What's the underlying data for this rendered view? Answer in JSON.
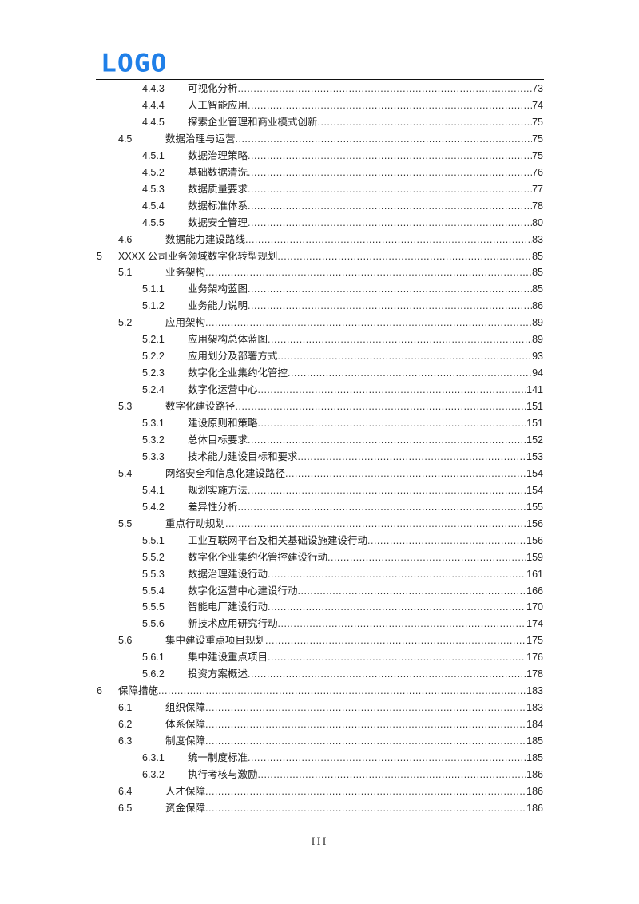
{
  "header": {
    "logo_text": "LOGO",
    "logo_color": "#1f7fe8"
  },
  "toc": [
    {
      "num": "4.4.3",
      "title": "可视化分析",
      "page": "73",
      "level": 3
    },
    {
      "num": "4.4.4",
      "title": "人工智能应用",
      "page": "74",
      "level": 3
    },
    {
      "num": "4.4.5",
      "title": "探索企业管理和商业模式创新",
      "page": "75",
      "level": 3
    },
    {
      "num": "4.5",
      "title": "数据治理与运营",
      "page": "75",
      "level": 2
    },
    {
      "num": "4.5.1",
      "title": "数据治理策略",
      "page": "75",
      "level": 3
    },
    {
      "num": "4.5.2",
      "title": "基础数据清洗",
      "page": "76",
      "level": 3
    },
    {
      "num": "4.5.3",
      "title": "数据质量要求",
      "page": "77",
      "level": 3
    },
    {
      "num": "4.5.4",
      "title": "数据标准体系",
      "page": "78",
      "level": 3
    },
    {
      "num": "4.5.5",
      "title": "数据安全管理",
      "page": "80",
      "level": 3
    },
    {
      "num": "4.6",
      "title": "数据能力建设路线",
      "page": "83",
      "level": 2
    },
    {
      "num": "5",
      "title": "XXXX 公司业务领域数字化转型规划",
      "page": "85",
      "level": 1
    },
    {
      "num": "5.1",
      "title": "业务架构",
      "page": "85",
      "level": 2
    },
    {
      "num": "5.1.1",
      "title": "业务架构蓝图",
      "page": "85",
      "level": 3
    },
    {
      "num": "5.1.2",
      "title": "业务能力说明",
      "page": "86",
      "level": 3
    },
    {
      "num": "5.2",
      "title": "应用架构",
      "page": "89",
      "level": 2
    },
    {
      "num": "5.2.1",
      "title": "应用架构总体蓝图",
      "page": "89",
      "level": 3
    },
    {
      "num": "5.2.2",
      "title": "应用划分及部署方式",
      "page": "93",
      "level": 3
    },
    {
      "num": "5.2.3",
      "title": "数字化企业集约化管控",
      "page": "94",
      "level": 3
    },
    {
      "num": "5.2.4",
      "title": "数字化运营中心",
      "page": "141",
      "level": 3
    },
    {
      "num": "5.3",
      "title": "数字化建设路径",
      "page": "151",
      "level": 2
    },
    {
      "num": "5.3.1",
      "title": "建设原则和策略",
      "page": "151",
      "level": 3
    },
    {
      "num": "5.3.2",
      "title": "总体目标要求",
      "page": "152",
      "level": 3
    },
    {
      "num": "5.3.3",
      "title": "技术能力建设目标和要求",
      "page": "153",
      "level": 3
    },
    {
      "num": "5.4",
      "title": "网络安全和信息化建设路径",
      "page": "154",
      "level": 2
    },
    {
      "num": "5.4.1",
      "title": "规划实施方法",
      "page": "154",
      "level": 3
    },
    {
      "num": "5.4.2",
      "title": "差异性分析",
      "page": "155",
      "level": 3
    },
    {
      "num": "5.5",
      "title": "重点行动规划",
      "page": "156",
      "level": 2
    },
    {
      "num": "5.5.1",
      "title": "工业互联网平台及相关基础设施建设行动",
      "page": "156",
      "level": 3
    },
    {
      "num": "5.5.2",
      "title": "数字化企业集约化管控建设行动",
      "page": "159",
      "level": 3
    },
    {
      "num": "5.5.3",
      "title": "数据治理建设行动",
      "page": "161",
      "level": 3
    },
    {
      "num": "5.5.4",
      "title": "数字化运营中心建设行动",
      "page": "166",
      "level": 3
    },
    {
      "num": "5.5.5",
      "title": "智能电厂建设行动",
      "page": "170",
      "level": 3
    },
    {
      "num": "5.5.6",
      "title": "新技术应用研究行动",
      "page": "174",
      "level": 3
    },
    {
      "num": "5.6",
      "title": "集中建设重点项目规划",
      "page": "175",
      "level": 2
    },
    {
      "num": "5.6.1",
      "title": "集中建设重点项目",
      "page": "176",
      "level": 3
    },
    {
      "num": "5.6.2",
      "title": "投资方案概述",
      "page": "178",
      "level": 3
    },
    {
      "num": "6",
      "title": "保障措施",
      "page": "183",
      "level": 1
    },
    {
      "num": "6.1",
      "title": "组织保障",
      "page": "183",
      "level": 2
    },
    {
      "num": "6.2",
      "title": "体系保障",
      "page": "184",
      "level": 2
    },
    {
      "num": "6.3",
      "title": "制度保障",
      "page": "185",
      "level": 2
    },
    {
      "num": "6.3.1",
      "title": "统一制度标准",
      "page": "185",
      "level": 3
    },
    {
      "num": "6.3.2",
      "title": "执行考核与激励",
      "page": "186",
      "level": 3
    },
    {
      "num": "6.4",
      "title": "人才保障",
      "page": "186",
      "level": 2
    },
    {
      "num": "6.5",
      "title": "资金保障",
      "page": "186",
      "level": 2
    }
  ],
  "footer": {
    "page_number": "III"
  }
}
